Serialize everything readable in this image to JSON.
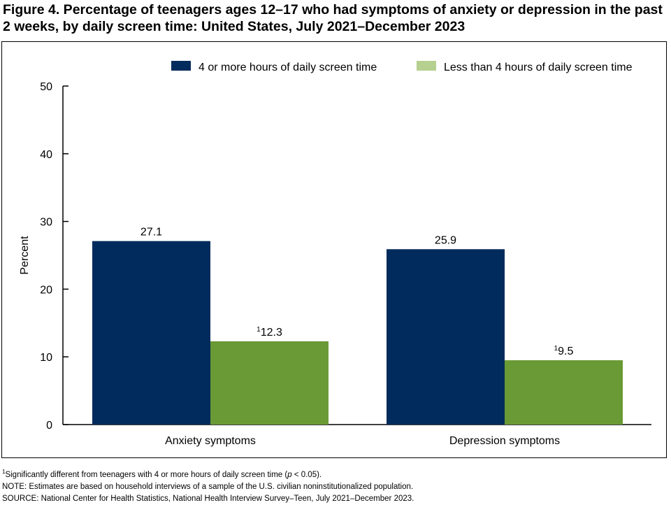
{
  "figure": {
    "title": "Figure 4. Percentage of teenagers ages 12–17 who had symptoms of anxiety or depression in the past 2 weeks, by daily screen time: United States, July 2021–December 2023"
  },
  "colors": {
    "series1": "#002b5c",
    "series2": "#6a9a35",
    "series2_legend": "#b5d08f",
    "axis": "#000000"
  },
  "chart_data": {
    "type": "bar",
    "categories": [
      "Anxiety symptoms",
      "Depression symptoms"
    ],
    "series": [
      {
        "name": "4 or more hours of daily screen time",
        "values": [
          27.1,
          25.9
        ],
        "labels": [
          "27.1",
          "25.9"
        ],
        "markers": [
          "",
          ""
        ]
      },
      {
        "name": "Less than 4 hours of daily screen time",
        "values": [
          12.3,
          9.5
        ],
        "labels": [
          "12.3",
          "9.5"
        ],
        "markers": [
          "1",
          "1"
        ]
      }
    ],
    "ylabel": "Percent",
    "xlabel": "",
    "ylim": [
      0,
      50
    ],
    "yticks": [
      0,
      10,
      20,
      30,
      40,
      50
    ],
    "grid": false,
    "legend": "top-right"
  },
  "footnotes": {
    "marker": "1",
    "sig_before": "Significantly different from teenagers with 4 or more hours of daily screen time (",
    "sig_italic": "p",
    "sig_after": " < 0.05).",
    "note": "NOTE: Estimates are based on household interviews of a sample of the U.S. civilian noninstitutionalized population.",
    "source": "SOURCE: National Center for Health Statistics, National Health Interview Survey–Teen, July 2021–December 2023."
  }
}
